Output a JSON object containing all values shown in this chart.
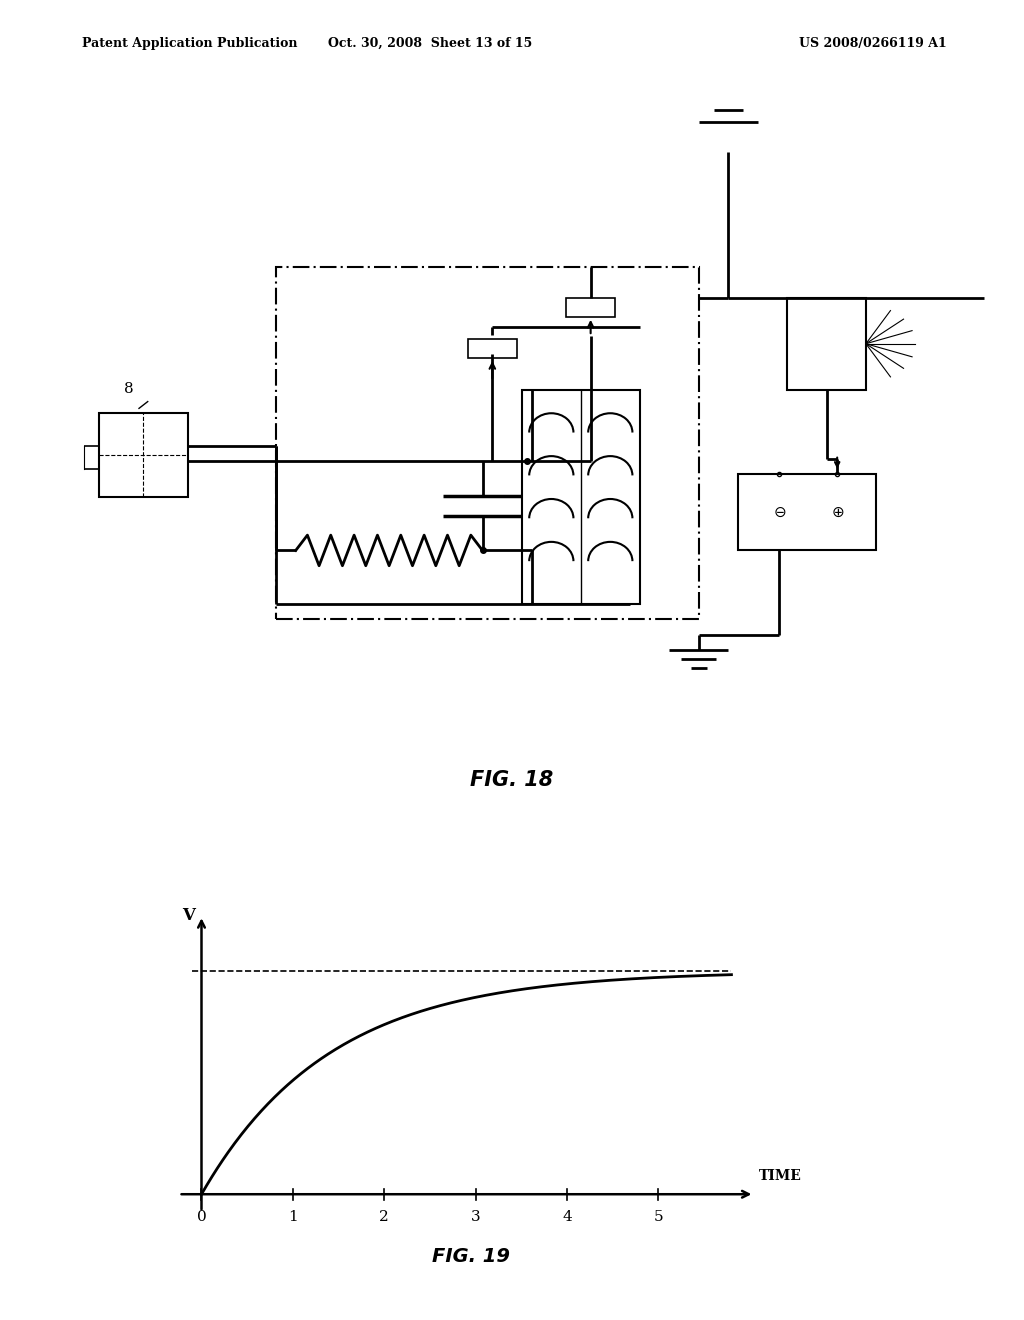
{
  "bg_color": "#ffffff",
  "text_color": "#000000",
  "header_left": "Patent Application Publication",
  "header_center": "Oct. 30, 2008  Sheet 13 of 15",
  "header_right": "US 2008/0266119 A1",
  "fig18_label": "FIG. 18",
  "fig19_label": "FIG. 19",
  "label_8": "8",
  "fig19_xlabel": "TIME",
  "fig19_ylabel": "V",
  "fig19_xticks": [
    0,
    1,
    2,
    3,
    4,
    5
  ],
  "fig19_asymptote": 1.0,
  "fig19_tau": 1.4,
  "circuit_xlim": [
    0,
    100
  ],
  "circuit_ylim": [
    0,
    100
  ]
}
